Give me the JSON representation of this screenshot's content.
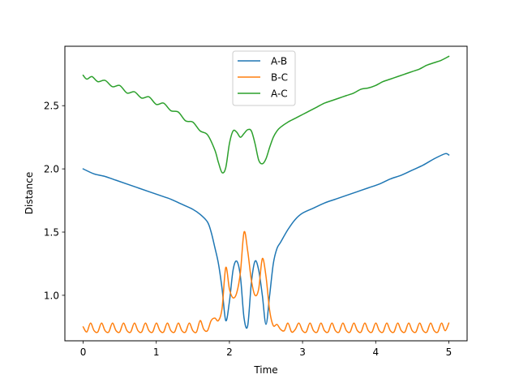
{
  "chart_data": {
    "type": "line",
    "xlabel": "Time",
    "ylabel": "Distance",
    "xlim": [
      -0.25,
      5.25
    ],
    "ylim": [
      0.64,
      2.97
    ],
    "xticks": [
      0,
      1,
      2,
      3,
      4,
      5
    ],
    "xtick_labels": [
      "0",
      "1",
      "2",
      "3",
      "4",
      "5"
    ],
    "yticks": [
      1.0,
      1.5,
      2.0,
      2.5
    ],
    "ytick_labels": [
      "1.0",
      "1.5",
      "2.0",
      "2.5"
    ],
    "grid": false,
    "legend_position": "top-center",
    "series": [
      {
        "name": "A-B",
        "color": "#1f77b4",
        "x": [
          0,
          0.15,
          0.3,
          0.45,
          0.6,
          0.75,
          0.9,
          1.05,
          1.2,
          1.35,
          1.5,
          1.6,
          1.7,
          1.75,
          1.8,
          1.85,
          1.9,
          1.95,
          2.0,
          2.05,
          2.1,
          2.15,
          2.2,
          2.25,
          2.3,
          2.35,
          2.4,
          2.45,
          2.5,
          2.55,
          2.6,
          2.65,
          2.7,
          2.8,
          2.9,
          3.0,
          3.15,
          3.3,
          3.45,
          3.6,
          3.75,
          3.9,
          4.05,
          4.2,
          4.35,
          4.5,
          4.65,
          4.8,
          4.95,
          5.0
        ],
        "y": [
          2.0,
          1.96,
          1.94,
          1.91,
          1.88,
          1.85,
          1.82,
          1.79,
          1.76,
          1.72,
          1.68,
          1.64,
          1.58,
          1.5,
          1.38,
          1.25,
          1.05,
          0.8,
          0.95,
          1.2,
          1.27,
          1.15,
          0.82,
          0.76,
          1.1,
          1.27,
          1.2,
          1.0,
          0.77,
          1.0,
          1.25,
          1.37,
          1.42,
          1.52,
          1.6,
          1.65,
          1.69,
          1.73,
          1.76,
          1.79,
          1.82,
          1.85,
          1.88,
          1.92,
          1.95,
          1.99,
          2.03,
          2.08,
          2.12,
          2.11
        ]
      },
      {
        "name": "B-C",
        "color": "#ff7f0e",
        "x": [
          0,
          0.05,
          0.1,
          0.15,
          0.2,
          0.25,
          0.3,
          0.35,
          0.4,
          0.45,
          0.5,
          0.55,
          0.6,
          0.65,
          0.7,
          0.75,
          0.8,
          0.85,
          0.9,
          0.95,
          1.0,
          1.05,
          1.1,
          1.15,
          1.2,
          1.25,
          1.3,
          1.35,
          1.4,
          1.45,
          1.5,
          1.55,
          1.6,
          1.65,
          1.7,
          1.75,
          1.8,
          1.85,
          1.9,
          1.95,
          2.0,
          2.05,
          2.1,
          2.15,
          2.2,
          2.25,
          2.3,
          2.35,
          2.4,
          2.45,
          2.5,
          2.55,
          2.6,
          2.65,
          2.7,
          2.75,
          2.8,
          2.85,
          2.9,
          2.95,
          3.0,
          3.05,
          3.1,
          3.15,
          3.2,
          3.25,
          3.3,
          3.35,
          3.4,
          3.45,
          3.5,
          3.55,
          3.6,
          3.65,
          3.7,
          3.75,
          3.8,
          3.85,
          3.9,
          3.95,
          4.0,
          4.05,
          4.1,
          4.15,
          4.2,
          4.25,
          4.3,
          4.35,
          4.4,
          4.45,
          4.5,
          4.55,
          4.6,
          4.65,
          4.7,
          4.75,
          4.8,
          4.85,
          4.9,
          4.95,
          5.0
        ],
        "y": [
          0.75,
          0.71,
          0.78,
          0.72,
          0.71,
          0.78,
          0.72,
          0.71,
          0.78,
          0.72,
          0.71,
          0.78,
          0.72,
          0.71,
          0.78,
          0.72,
          0.71,
          0.78,
          0.72,
          0.71,
          0.78,
          0.72,
          0.71,
          0.78,
          0.72,
          0.71,
          0.78,
          0.72,
          0.71,
          0.78,
          0.72,
          0.71,
          0.8,
          0.73,
          0.72,
          0.8,
          0.82,
          0.8,
          0.9,
          1.22,
          1.05,
          0.98,
          1.02,
          1.18,
          1.5,
          1.35,
          1.12,
          1.0,
          1.05,
          1.29,
          1.15,
          0.88,
          0.76,
          0.77,
          0.73,
          0.72,
          0.78,
          0.71,
          0.73,
          0.78,
          0.72,
          0.71,
          0.78,
          0.72,
          0.71,
          0.78,
          0.72,
          0.71,
          0.78,
          0.72,
          0.71,
          0.78,
          0.72,
          0.71,
          0.78,
          0.72,
          0.71,
          0.78,
          0.72,
          0.71,
          0.78,
          0.72,
          0.71,
          0.78,
          0.72,
          0.71,
          0.78,
          0.72,
          0.71,
          0.78,
          0.72,
          0.71,
          0.78,
          0.72,
          0.71,
          0.78,
          0.72,
          0.71,
          0.78,
          0.72,
          0.78
        ]
      },
      {
        "name": "A-C",
        "color": "#2ca02c",
        "x": [
          0,
          0.05,
          0.12,
          0.2,
          0.3,
          0.4,
          0.5,
          0.6,
          0.7,
          0.8,
          0.9,
          1.0,
          1.1,
          1.2,
          1.3,
          1.4,
          1.5,
          1.6,
          1.7,
          1.8,
          1.85,
          1.9,
          1.95,
          2.0,
          2.05,
          2.1,
          2.15,
          2.2,
          2.25,
          2.3,
          2.35,
          2.4,
          2.45,
          2.5,
          2.55,
          2.6,
          2.65,
          2.7,
          2.8,
          2.9,
          3.0,
          3.1,
          3.2,
          3.3,
          3.4,
          3.5,
          3.6,
          3.7,
          3.8,
          3.9,
          4.0,
          4.1,
          4.2,
          4.3,
          4.4,
          4.5,
          4.6,
          4.7,
          4.8,
          4.9,
          5.0
        ],
        "y": [
          2.74,
          2.71,
          2.73,
          2.69,
          2.7,
          2.65,
          2.66,
          2.6,
          2.61,
          2.56,
          2.57,
          2.51,
          2.52,
          2.46,
          2.45,
          2.38,
          2.37,
          2.3,
          2.27,
          2.15,
          2.05,
          1.97,
          2.01,
          2.2,
          2.3,
          2.29,
          2.25,
          2.28,
          2.31,
          2.3,
          2.2,
          2.07,
          2.04,
          2.08,
          2.17,
          2.25,
          2.3,
          2.33,
          2.37,
          2.4,
          2.43,
          2.46,
          2.49,
          2.52,
          2.54,
          2.56,
          2.58,
          2.6,
          2.63,
          2.64,
          2.66,
          2.69,
          2.71,
          2.73,
          2.75,
          2.77,
          2.79,
          2.82,
          2.84,
          2.86,
          2.89
        ]
      }
    ]
  }
}
